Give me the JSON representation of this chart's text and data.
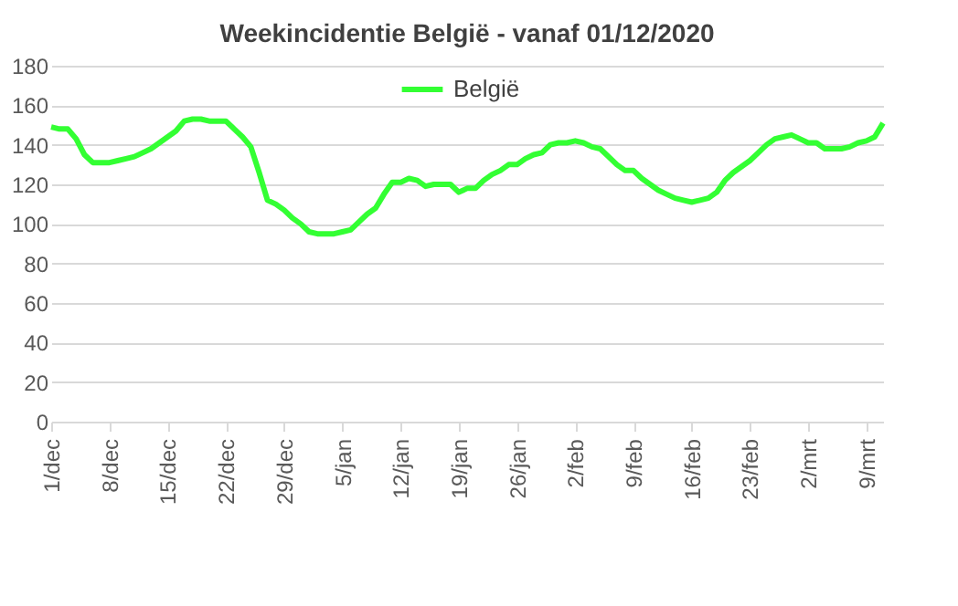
{
  "chart_data": {
    "type": "line",
    "title": "Weekincidentie  België - vanaf 01/12/2020",
    "x": [
      "2020-12-01",
      "2020-12-02",
      "2020-12-03",
      "2020-12-04",
      "2020-12-05",
      "2020-12-06",
      "2020-12-07",
      "2020-12-08",
      "2020-12-09",
      "2020-12-10",
      "2020-12-11",
      "2020-12-12",
      "2020-12-13",
      "2020-12-14",
      "2020-12-15",
      "2020-12-16",
      "2020-12-17",
      "2020-12-18",
      "2020-12-19",
      "2020-12-20",
      "2020-12-21",
      "2020-12-22",
      "2020-12-23",
      "2020-12-24",
      "2020-12-25",
      "2020-12-26",
      "2020-12-27",
      "2020-12-28",
      "2020-12-29",
      "2020-12-30",
      "2020-12-31",
      "2021-01-01",
      "2021-01-02",
      "2021-01-03",
      "2021-01-04",
      "2021-01-05",
      "2021-01-06",
      "2021-01-07",
      "2021-01-08",
      "2021-01-09",
      "2021-01-10",
      "2021-01-11",
      "2021-01-12",
      "2021-01-13",
      "2021-01-14",
      "2021-01-15",
      "2021-01-16",
      "2021-01-17",
      "2021-01-18",
      "2021-01-19",
      "2021-01-20",
      "2021-01-21",
      "2021-01-22",
      "2021-01-23",
      "2021-01-24",
      "2021-01-25",
      "2021-01-26",
      "2021-01-27",
      "2021-01-28",
      "2021-01-29",
      "2021-01-30",
      "2021-01-31",
      "2021-02-01",
      "2021-02-02",
      "2021-02-03",
      "2021-02-04",
      "2021-02-05",
      "2021-02-06",
      "2021-02-07",
      "2021-02-08",
      "2021-02-09",
      "2021-02-10",
      "2021-02-11",
      "2021-02-12",
      "2021-02-13",
      "2021-02-14",
      "2021-02-15",
      "2021-02-16",
      "2021-02-17",
      "2021-02-18",
      "2021-02-19",
      "2021-02-20",
      "2021-02-21",
      "2021-02-22",
      "2021-02-23",
      "2021-02-24",
      "2021-02-25",
      "2021-02-26",
      "2021-02-27",
      "2021-02-28",
      "2021-03-01",
      "2021-03-02",
      "2021-03-03",
      "2021-03-04",
      "2021-03-05",
      "2021-03-06",
      "2021-03-07",
      "2021-03-08",
      "2021-03-09",
      "2021-03-10",
      "2021-03-11"
    ],
    "series": [
      {
        "name": "België",
        "color": "#33ff33",
        "values": [
          149,
          148,
          148,
          143,
          135,
          131,
          131,
          131,
          132,
          133,
          134,
          136,
          138,
          141,
          144,
          147,
          152,
          153,
          153,
          152,
          152,
          152,
          148,
          144,
          139,
          126,
          112,
          110,
          107,
          103,
          100,
          96,
          95,
          95,
          95,
          96,
          97,
          101,
          105,
          108,
          115,
          121,
          121,
          123,
          122,
          119,
          120,
          120,
          120,
          116,
          118,
          118,
          122,
          125,
          127,
          130,
          130,
          133,
          135,
          136,
          140,
          141,
          141,
          142,
          141,
          139,
          138,
          134,
          130,
          127,
          127,
          123,
          120,
          117,
          115,
          113,
          112,
          111,
          112,
          113,
          116,
          122,
          126,
          129,
          132,
          136,
          140,
          143,
          144,
          145,
          143,
          141,
          141,
          138,
          138,
          138,
          139,
          141,
          142,
          144,
          151
        ]
      }
    ],
    "xlim": [
      "2020-12-01",
      "2021-03-11"
    ],
    "xticks": [
      {
        "value": "2020-12-01",
        "label": "1/dec"
      },
      {
        "value": "2020-12-08",
        "label": "8/dec"
      },
      {
        "value": "2020-12-15",
        "label": "15/dec"
      },
      {
        "value": "2020-12-22",
        "label": "22/dec"
      },
      {
        "value": "2020-12-29",
        "label": "29/dec"
      },
      {
        "value": "2021-01-05",
        "label": "5/jan"
      },
      {
        "value": "2021-01-12",
        "label": "12/jan"
      },
      {
        "value": "2021-01-19",
        "label": "19/jan"
      },
      {
        "value": "2021-01-26",
        "label": "26/jan"
      },
      {
        "value": "2021-02-02",
        "label": "2/feb"
      },
      {
        "value": "2021-02-09",
        "label": "9/feb"
      },
      {
        "value": "2021-02-16",
        "label": "16/feb"
      },
      {
        "value": "2021-02-23",
        "label": "23/feb"
      },
      {
        "value": "2021-03-02",
        "label": "2/mrt"
      },
      {
        "value": "2021-03-09",
        "label": "9/mrt"
      }
    ],
    "ylim": [
      0,
      180
    ],
    "yticks": [
      0,
      20,
      40,
      60,
      80,
      100,
      120,
      140,
      160,
      180
    ],
    "grid": "y",
    "legend": "top",
    "marker": "none",
    "line_style": "solid"
  }
}
